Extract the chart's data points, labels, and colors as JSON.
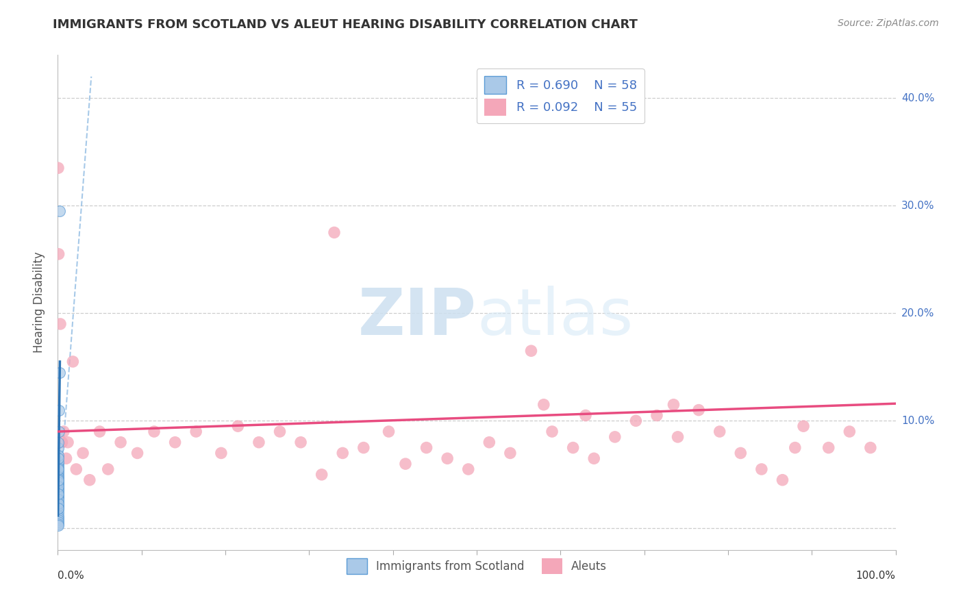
{
  "title": "IMMIGRANTS FROM SCOTLAND VS ALEUT HEARING DISABILITY CORRELATION CHART",
  "source": "Source: ZipAtlas.com",
  "ylabel": "Hearing Disability",
  "xlim": [
    0.0,
    1.0
  ],
  "ylim": [
    -0.02,
    0.44
  ],
  "blue_R": 0.69,
  "blue_N": 58,
  "pink_R": 0.092,
  "pink_N": 55,
  "legend_labels": [
    "Immigrants from Scotland",
    "Aleuts"
  ],
  "blue_color": "#aac9e8",
  "blue_edge_color": "#5b9bd5",
  "blue_line_color": "#2e75b6",
  "blue_dash_color": "#9dc3e6",
  "pink_color": "#f4a7b9",
  "pink_edge_color": "#f4a7b9",
  "pink_line_color": "#e84c80",
  "watermark_zip": "ZIP",
  "watermark_atlas": "atlas",
  "ytick_vals": [
    0.0,
    0.1,
    0.2,
    0.3,
    0.4
  ],
  "ytick_labels": [
    "",
    "10.0%",
    "20.0%",
    "30.0%",
    "40.0%"
  ],
  "blue_scatter_x": [
    0.0002,
    0.0003,
    0.0004,
    0.0002,
    0.0003,
    0.0002,
    0.0004,
    0.0005,
    0.0003,
    0.0002,
    0.0002,
    0.0003,
    0.0002,
    0.0004,
    0.0003,
    0.0002,
    0.0005,
    0.0003,
    0.0004,
    0.0002,
    0.0003,
    0.0002,
    0.0004,
    0.0003,
    0.0002,
    0.0003,
    0.0002,
    0.0004,
    0.0003,
    0.0002,
    0.0003,
    0.0002,
    0.0004,
    0.0003,
    0.0002,
    0.0005,
    0.0003,
    0.0002,
    0.0004,
    0.0003,
    0.0002,
    0.0003,
    0.0002,
    0.0004,
    0.0003,
    0.0002,
    0.0003,
    0.0002,
    0.0015,
    0.0008,
    0.0012,
    0.0006,
    0.0004,
    0.0003,
    0.0004,
    0.0005,
    0.0018,
    0.0025
  ],
  "blue_scatter_y": [
    0.05,
    0.055,
    0.045,
    0.048,
    0.052,
    0.04,
    0.047,
    0.053,
    0.042,
    0.038,
    0.035,
    0.06,
    0.032,
    0.044,
    0.058,
    0.03,
    0.062,
    0.036,
    0.056,
    0.028,
    0.038,
    0.025,
    0.048,
    0.033,
    0.022,
    0.041,
    0.029,
    0.037,
    0.046,
    0.02,
    0.035,
    0.024,
    0.018,
    0.043,
    0.015,
    0.031,
    0.021,
    0.012,
    0.039,
    0.027,
    0.01,
    0.023,
    0.008,
    0.032,
    0.006,
    0.004,
    0.019,
    0.003,
    0.09,
    0.075,
    0.11,
    0.068,
    0.055,
    0.045,
    0.065,
    0.08,
    0.145,
    0.295
  ],
  "pink_scatter_x": [
    0.0005,
    0.001,
    0.003,
    0.007,
    0.012,
    0.018,
    0.03,
    0.05,
    0.075,
    0.095,
    0.115,
    0.14,
    0.165,
    0.195,
    0.215,
    0.24,
    0.265,
    0.29,
    0.315,
    0.34,
    0.365,
    0.395,
    0.415,
    0.44,
    0.465,
    0.49,
    0.515,
    0.54,
    0.565,
    0.59,
    0.615,
    0.64,
    0.665,
    0.69,
    0.715,
    0.74,
    0.765,
    0.79,
    0.815,
    0.84,
    0.865,
    0.89,
    0.92,
    0.945,
    0.97,
    0.005,
    0.01,
    0.022,
    0.038,
    0.06,
    0.33,
    0.58,
    0.63,
    0.735,
    0.88
  ],
  "pink_scatter_y": [
    0.335,
    0.255,
    0.19,
    0.09,
    0.08,
    0.155,
    0.07,
    0.09,
    0.08,
    0.07,
    0.09,
    0.08,
    0.09,
    0.07,
    0.095,
    0.08,
    0.09,
    0.08,
    0.05,
    0.07,
    0.075,
    0.09,
    0.06,
    0.075,
    0.065,
    0.055,
    0.08,
    0.07,
    0.165,
    0.09,
    0.075,
    0.065,
    0.085,
    0.1,
    0.105,
    0.085,
    0.11,
    0.09,
    0.07,
    0.055,
    0.045,
    0.095,
    0.075,
    0.09,
    0.075,
    0.08,
    0.065,
    0.055,
    0.045,
    0.055,
    0.275,
    0.115,
    0.105,
    0.115,
    0.075
  ],
  "blue_regline_x": [
    0.0002,
    0.0025
  ],
  "blue_regline_y": [
    0.012,
    0.155
  ],
  "blue_dashline_x": [
    0.0002,
    0.04
  ],
  "blue_dashline_y": [
    0.012,
    0.42
  ],
  "pink_regline_x": [
    0.0,
    1.0
  ],
  "pink_regline_y": [
    0.09,
    0.116
  ]
}
